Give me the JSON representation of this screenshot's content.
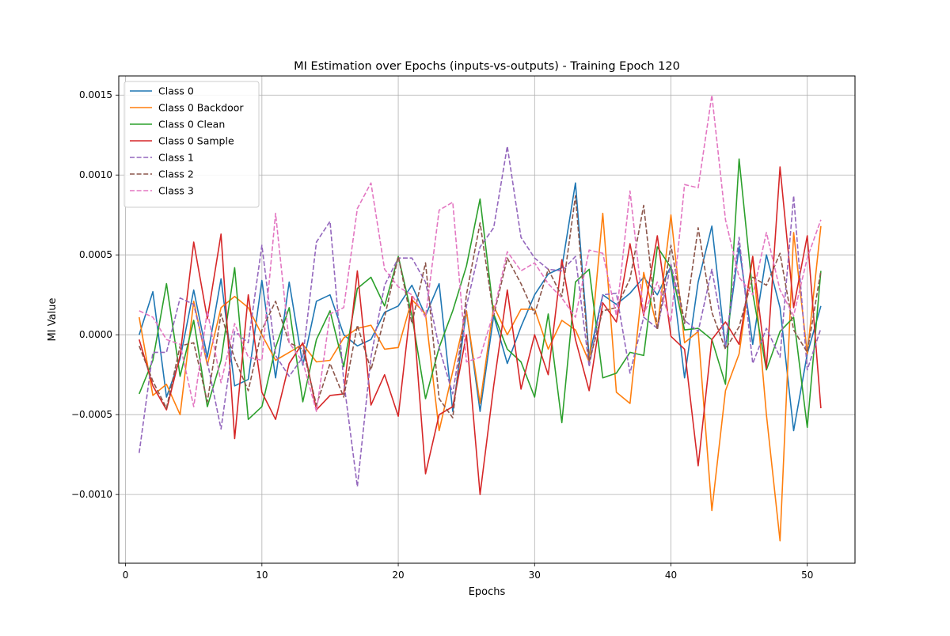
{
  "chart_data": {
    "type": "line",
    "title": "MI Estimation over Epochs (inputs-vs-outputs) - Training Epoch 120",
    "xlabel": "Epochs",
    "ylabel": "MI Value",
    "xlim": [
      -0.5,
      53.5
    ],
    "ylim": [
      -0.00143,
      0.00162
    ],
    "xticks": [
      0,
      10,
      20,
      30,
      40,
      50
    ],
    "xtick_labels": [
      "0",
      "10",
      "20",
      "30",
      "40",
      "50"
    ],
    "yticks": [
      -0.001,
      -0.0005,
      0.0,
      0.0005,
      0.001,
      0.0015
    ],
    "ytick_labels": [
      "−0.0010",
      "−0.0005",
      "0.0000",
      "0.0005",
      "0.0010",
      "0.0015"
    ],
    "grid": true,
    "legend_position": "upper-left",
    "x": [
      1,
      2,
      3,
      4,
      5,
      6,
      7,
      8,
      9,
      10,
      11,
      12,
      13,
      14,
      15,
      16,
      17,
      18,
      19,
      20,
      21,
      22,
      23,
      24,
      25,
      26,
      27,
      28,
      29,
      30,
      31,
      32,
      33,
      34,
      35,
      36,
      37,
      38,
      39,
      40,
      41,
      42,
      43,
      44,
      45,
      46,
      47,
      48,
      49,
      50,
      51
    ],
    "series": [
      {
        "name": "Class 0",
        "color": "#1f77b4",
        "dash": "solid",
        "values": [
          0.0,
          0.00027,
          -0.00039,
          -0.00015,
          0.00028,
          -0.00014,
          0.00035,
          -0.00032,
          -0.00028,
          0.00034,
          -0.00027,
          0.00033,
          -0.00019,
          0.00021,
          0.00025,
          0.0,
          -7e-05,
          -3e-05,
          0.00014,
          0.00018,
          0.00031,
          0.00012,
          0.00032,
          -0.00048,
          0.00015,
          -0.00048,
          0.00012,
          -0.00018,
          5e-05,
          0.00025,
          0.00038,
          0.00042,
          0.00095,
          -0.00014,
          0.00025,
          0.00019,
          0.00026,
          0.00036,
          0.00025,
          0.00043,
          -0.00027,
          0.00033,
          0.00068,
          -8e-05,
          0.00055,
          -6e-05,
          0.0005,
          0.00017,
          -0.0006,
          -0.00012,
          0.00018
        ]
      },
      {
        "name": "Class 0 Backdoor",
        "color": "#ff7f0e",
        "dash": "solid",
        "values": [
          0.00011,
          -0.00038,
          -0.00031,
          -0.0005,
          0.00021,
          -0.00019,
          0.00017,
          0.00024,
          0.00017,
          0.0,
          -0.00016,
          -0.00011,
          -6e-05,
          -0.00017,
          -0.00016,
          -2e-05,
          4e-05,
          6e-05,
          -9e-05,
          -8e-05,
          0.00022,
          0.00013,
          -0.0006,
          -0.00023,
          0.00015,
          -0.00043,
          0.00018,
          0.0,
          0.00016,
          0.00016,
          -9e-05,
          9e-05,
          3e-05,
          -0.00017,
          0.00076,
          -0.00036,
          -0.00043,
          0.00039,
          4e-05,
          0.00075,
          -5e-05,
          2e-05,
          -0.0011,
          -0.00035,
          -0.00012,
          0.00049,
          -0.0005,
          -0.00129,
          0.00064,
          -0.00012,
          0.00068
        ]
      },
      {
        "name": "Class 0 Clean",
        "color": "#2ca02c",
        "dash": "solid",
        "values": [
          -0.00037,
          -0.00016,
          0.00032,
          -0.00026,
          9e-05,
          -0.00045,
          -0.00016,
          0.00042,
          -0.00053,
          -0.00045,
          -8e-05,
          0.00017,
          -0.00042,
          -3e-05,
          0.00015,
          -0.0002,
          0.00029,
          0.00036,
          0.00018,
          0.00049,
          0.00012,
          -0.0004,
          -8e-05,
          0.00015,
          0.00043,
          0.00085,
          0.00013,
          -9e-05,
          -0.00017,
          -0.00039,
          0.00013,
          -0.00055,
          0.00033,
          0.00041,
          -0.00027,
          -0.00024,
          -0.00011,
          -0.00013,
          0.00055,
          0.00042,
          3e-05,
          4e-05,
          -3e-05,
          -0.00031,
          0.0011,
          0.00026,
          -0.00022,
          2e-05,
          0.00011,
          -0.00058,
          0.0004
        ]
      },
      {
        "name": "Class 0 Sample",
        "color": "#d62728",
        "dash": "solid",
        "values": [
          -3e-05,
          -0.00032,
          -0.00047,
          -0.00013,
          0.00058,
          0.0001,
          0.00063,
          -0.00065,
          0.00025,
          -0.00036,
          -0.00053,
          -0.00018,
          -5e-05,
          -0.00047,
          -0.00038,
          -0.00037,
          0.0004,
          -0.00044,
          -0.00025,
          -0.00051,
          0.00024,
          -0.00087,
          -0.0005,
          -0.00045,
          0.0,
          -0.001,
          -0.00032,
          0.00028,
          -0.00034,
          0.0,
          -0.00025,
          0.00047,
          -3e-05,
          -0.00035,
          0.0002,
          8e-05,
          0.00057,
          0.00012,
          0.00062,
          -1e-05,
          -9e-05,
          -0.00082,
          -3e-05,
          8e-05,
          -6e-05,
          0.00049,
          -0.00021,
          0.00105,
          0.00017,
          0.00062,
          -0.00046
        ]
      },
      {
        "name": "Class 1",
        "color": "#9467bd",
        "dash": "dashed",
        "values": [
          -0.00074,
          -0.00011,
          -0.00011,
          0.00023,
          0.00019,
          -0.00017,
          -0.00059,
          2e-05,
          -5e-05,
          0.00056,
          -0.00013,
          -0.00026,
          -0.00014,
          0.00058,
          0.00071,
          -0.00029,
          -0.00095,
          -0.00014,
          0.00031,
          0.00048,
          0.00048,
          0.00033,
          -8e-05,
          -0.00037,
          0.00018,
          0.00055,
          0.00067,
          0.00118,
          0.00061,
          0.00048,
          0.00041,
          0.0004,
          0.00049,
          -0.0002,
          0.00025,
          0.00026,
          -0.00024,
          0.00011,
          4e-05,
          0.00044,
          9e-05,
          2e-05,
          0.00041,
          -7e-05,
          0.00061,
          -0.00018,
          4e-05,
          -0.00014,
          0.00087,
          -0.00022,
          4e-05
        ]
      },
      {
        "name": "Class 2",
        "color": "#8c564b",
        "dash": "dashed",
        "values": [
          -7e-05,
          -0.00029,
          -0.00046,
          -7e-05,
          -5e-05,
          -0.00042,
          0.00013,
          -0.00015,
          -0.00035,
          3e-05,
          0.00021,
          -5e-05,
          -9e-05,
          -0.00044,
          -0.00018,
          -0.00039,
          6e-05,
          -0.00022,
          0.00011,
          0.00049,
          7e-05,
          0.00045,
          -0.0004,
          -0.00052,
          0.00025,
          0.0007,
          0.00012,
          0.00048,
          0.00032,
          0.00013,
          0.00041,
          0.00024,
          0.00087,
          -0.00017,
          0.00015,
          0.00017,
          0.00035,
          0.00081,
          3e-05,
          0.00056,
          7e-05,
          0.00067,
          0.00014,
          -9e-05,
          5e-05,
          0.00036,
          0.00031,
          0.00051,
          3e-05,
          -0.00011,
          0.0004
        ]
      },
      {
        "name": "Class 3",
        "color": "#e377c2",
        "dash": "dashed",
        "values": [
          0.00015,
          0.00011,
          -3e-05,
          -6e-05,
          -0.00045,
          0.00015,
          -0.0003,
          7e-05,
          -0.00014,
          -0.00016,
          0.00076,
          -5e-05,
          -0.00017,
          -0.00048,
          0.00013,
          0.00017,
          0.00079,
          0.00095,
          0.00041,
          0.0003,
          0.00025,
          0.00011,
          0.00078,
          0.00083,
          -0.00017,
          -0.00014,
          0.00014,
          0.00052,
          0.0004,
          0.00045,
          0.00032,
          0.00023,
          0.00011,
          0.00053,
          0.00051,
          0.00012,
          0.0009,
          0.00013,
          0.00033,
          8e-05,
          0.00094,
          0.00092,
          0.0015,
          0.00072,
          0.00036,
          0.00025,
          0.00064,
          0.00028,
          0.00012,
          0.00048,
          0.00072
        ]
      }
    ]
  }
}
